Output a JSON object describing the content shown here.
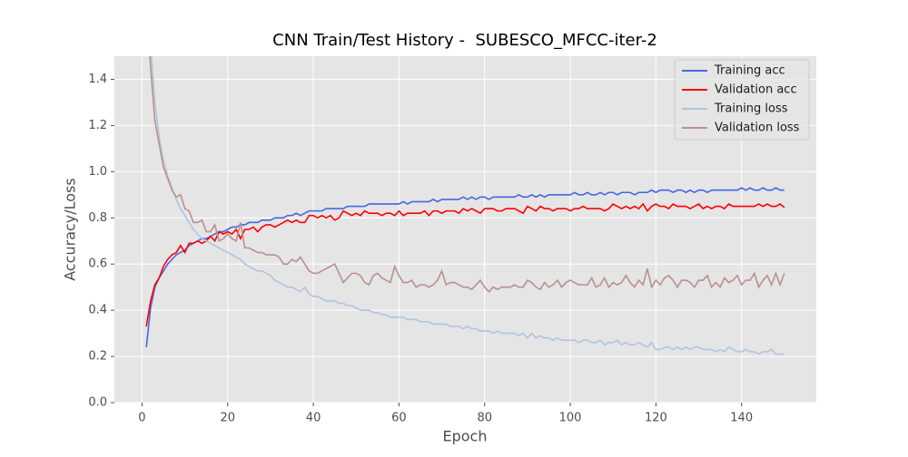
{
  "chart_data": {
    "type": "line",
    "title": "CNN Train/Test History -  SUBESCO_MFCC-iter-2",
    "x_label": "Epoch",
    "y_label": "Accuracy/Loss",
    "x": [
      1,
      2,
      3,
      4,
      5,
      6,
      7,
      8,
      9,
      10,
      11,
      12,
      13,
      14,
      15,
      16,
      17,
      18,
      19,
      20,
      21,
      22,
      23,
      24,
      25,
      26,
      27,
      28,
      29,
      30,
      31,
      32,
      33,
      34,
      35,
      36,
      37,
      38,
      39,
      40,
      41,
      42,
      43,
      44,
      45,
      46,
      47,
      48,
      49,
      50,
      51,
      52,
      53,
      54,
      55,
      56,
      57,
      58,
      59,
      60,
      61,
      62,
      63,
      64,
      65,
      66,
      67,
      68,
      69,
      70,
      71,
      72,
      73,
      74,
      75,
      76,
      77,
      78,
      79,
      80,
      81,
      82,
      83,
      84,
      85,
      86,
      87,
      88,
      89,
      90,
      91,
      92,
      93,
      94,
      95,
      96,
      97,
      98,
      99,
      100,
      101,
      102,
      103,
      104,
      105,
      106,
      107,
      108,
      109,
      110,
      111,
      112,
      113,
      114,
      115,
      116,
      117,
      118,
      119,
      120,
      121,
      122,
      123,
      124,
      125,
      126,
      127,
      128,
      129,
      130,
      131,
      132,
      133,
      134,
      135,
      136,
      137,
      138,
      139,
      140,
      141,
      142,
      143,
      144,
      145,
      146,
      147,
      148,
      149,
      150
    ],
    "series": [
      {
        "name": "Training acc",
        "color": "#4169e1",
        "values": [
          0.24,
          0.41,
          0.5,
          0.54,
          0.57,
          0.6,
          0.62,
          0.64,
          0.65,
          0.66,
          0.68,
          0.69,
          0.7,
          0.71,
          0.71,
          0.72,
          0.73,
          0.74,
          0.74,
          0.75,
          0.76,
          0.76,
          0.77,
          0.77,
          0.78,
          0.78,
          0.78,
          0.79,
          0.79,
          0.79,
          0.8,
          0.8,
          0.8,
          0.81,
          0.81,
          0.82,
          0.81,
          0.82,
          0.83,
          0.83,
          0.83,
          0.83,
          0.84,
          0.84,
          0.84,
          0.84,
          0.84,
          0.85,
          0.85,
          0.85,
          0.85,
          0.85,
          0.86,
          0.86,
          0.86,
          0.86,
          0.86,
          0.86,
          0.86,
          0.86,
          0.87,
          0.86,
          0.87,
          0.87,
          0.87,
          0.87,
          0.87,
          0.88,
          0.87,
          0.88,
          0.88,
          0.88,
          0.88,
          0.88,
          0.89,
          0.88,
          0.89,
          0.88,
          0.89,
          0.89,
          0.88,
          0.89,
          0.89,
          0.89,
          0.89,
          0.89,
          0.89,
          0.9,
          0.89,
          0.89,
          0.9,
          0.89,
          0.9,
          0.89,
          0.9,
          0.9,
          0.9,
          0.9,
          0.9,
          0.9,
          0.91,
          0.9,
          0.9,
          0.91,
          0.9,
          0.9,
          0.91,
          0.9,
          0.91,
          0.91,
          0.9,
          0.91,
          0.91,
          0.91,
          0.9,
          0.91,
          0.91,
          0.91,
          0.92,
          0.91,
          0.92,
          0.92,
          0.92,
          0.91,
          0.92,
          0.92,
          0.91,
          0.92,
          0.91,
          0.92,
          0.92,
          0.91,
          0.92,
          0.92,
          0.92,
          0.92,
          0.92,
          0.92,
          0.92,
          0.93,
          0.92,
          0.93,
          0.92,
          0.92,
          0.93,
          0.92,
          0.92,
          0.93,
          0.92,
          0.92
        ]
      },
      {
        "name": "Validation acc",
        "color": "#ff0000",
        "values": [
          0.33,
          0.44,
          0.51,
          0.54,
          0.59,
          0.62,
          0.64,
          0.65,
          0.68,
          0.65,
          0.69,
          0.69,
          0.7,
          0.69,
          0.7,
          0.72,
          0.7,
          0.74,
          0.73,
          0.74,
          0.73,
          0.75,
          0.71,
          0.75,
          0.75,
          0.76,
          0.74,
          0.76,
          0.77,
          0.77,
          0.76,
          0.77,
          0.78,
          0.79,
          0.78,
          0.79,
          0.78,
          0.78,
          0.81,
          0.81,
          0.8,
          0.81,
          0.8,
          0.81,
          0.79,
          0.8,
          0.83,
          0.82,
          0.81,
          0.82,
          0.81,
          0.83,
          0.82,
          0.82,
          0.82,
          0.81,
          0.82,
          0.82,
          0.81,
          0.83,
          0.81,
          0.82,
          0.82,
          0.82,
          0.82,
          0.83,
          0.81,
          0.83,
          0.83,
          0.82,
          0.83,
          0.83,
          0.83,
          0.82,
          0.84,
          0.83,
          0.84,
          0.83,
          0.82,
          0.84,
          0.84,
          0.84,
          0.83,
          0.83,
          0.84,
          0.84,
          0.84,
          0.83,
          0.82,
          0.85,
          0.84,
          0.83,
          0.85,
          0.84,
          0.84,
          0.83,
          0.84,
          0.84,
          0.84,
          0.83,
          0.84,
          0.84,
          0.85,
          0.84,
          0.84,
          0.84,
          0.84,
          0.83,
          0.84,
          0.86,
          0.85,
          0.84,
          0.85,
          0.84,
          0.85,
          0.84,
          0.86,
          0.83,
          0.85,
          0.86,
          0.85,
          0.85,
          0.84,
          0.86,
          0.85,
          0.85,
          0.85,
          0.84,
          0.85,
          0.86,
          0.84,
          0.85,
          0.84,
          0.85,
          0.85,
          0.84,
          0.86,
          0.85,
          0.85,
          0.85,
          0.85,
          0.85,
          0.85,
          0.86,
          0.85,
          0.86,
          0.85,
          0.85,
          0.86,
          0.845
        ]
      },
      {
        "name": "Training loss",
        "color": "#b0c4de",
        "values": [
          1.9,
          1.55,
          1.3,
          1.15,
          1.05,
          0.98,
          0.93,
          0.88,
          0.84,
          0.81,
          0.78,
          0.75,
          0.73,
          0.71,
          0.7,
          0.69,
          0.68,
          0.67,
          0.66,
          0.65,
          0.64,
          0.63,
          0.62,
          0.6,
          0.59,
          0.58,
          0.57,
          0.57,
          0.56,
          0.55,
          0.53,
          0.52,
          0.51,
          0.5,
          0.5,
          0.49,
          0.48,
          0.5,
          0.47,
          0.46,
          0.46,
          0.45,
          0.44,
          0.44,
          0.44,
          0.43,
          0.43,
          0.42,
          0.42,
          0.41,
          0.4,
          0.4,
          0.4,
          0.39,
          0.39,
          0.38,
          0.38,
          0.37,
          0.37,
          0.37,
          0.37,
          0.36,
          0.36,
          0.36,
          0.35,
          0.35,
          0.35,
          0.34,
          0.34,
          0.34,
          0.34,
          0.33,
          0.33,
          0.33,
          0.32,
          0.33,
          0.32,
          0.32,
          0.31,
          0.31,
          0.31,
          0.3,
          0.31,
          0.3,
          0.3,
          0.3,
          0.3,
          0.29,
          0.3,
          0.28,
          0.3,
          0.28,
          0.29,
          0.28,
          0.28,
          0.27,
          0.28,
          0.27,
          0.27,
          0.27,
          0.27,
          0.26,
          0.27,
          0.27,
          0.26,
          0.26,
          0.27,
          0.25,
          0.26,
          0.26,
          0.27,
          0.25,
          0.26,
          0.25,
          0.25,
          0.26,
          0.25,
          0.24,
          0.26,
          0.23,
          0.23,
          0.24,
          0.24,
          0.23,
          0.24,
          0.23,
          0.24,
          0.23,
          0.24,
          0.24,
          0.23,
          0.23,
          0.23,
          0.22,
          0.23,
          0.22,
          0.24,
          0.23,
          0.22,
          0.22,
          0.23,
          0.22,
          0.22,
          0.21,
          0.22,
          0.22,
          0.23,
          0.21,
          0.21,
          0.21
        ]
      },
      {
        "name": "Validation loss",
        "color": "#bc8f8f",
        "values": [
          1.8,
          1.45,
          1.22,
          1.12,
          1.02,
          0.97,
          0.92,
          0.89,
          0.9,
          0.84,
          0.83,
          0.78,
          0.78,
          0.79,
          0.74,
          0.74,
          0.77,
          0.7,
          0.71,
          0.73,
          0.71,
          0.7,
          0.78,
          0.67,
          0.67,
          0.66,
          0.65,
          0.65,
          0.64,
          0.64,
          0.64,
          0.63,
          0.6,
          0.6,
          0.62,
          0.61,
          0.63,
          0.6,
          0.57,
          0.56,
          0.56,
          0.57,
          0.58,
          0.59,
          0.6,
          0.56,
          0.52,
          0.54,
          0.56,
          0.56,
          0.55,
          0.52,
          0.51,
          0.55,
          0.56,
          0.54,
          0.53,
          0.52,
          0.59,
          0.55,
          0.52,
          0.52,
          0.53,
          0.5,
          0.51,
          0.51,
          0.5,
          0.51,
          0.53,
          0.57,
          0.51,
          0.52,
          0.52,
          0.51,
          0.5,
          0.5,
          0.49,
          0.51,
          0.53,
          0.5,
          0.48,
          0.5,
          0.49,
          0.5,
          0.5,
          0.5,
          0.51,
          0.5,
          0.5,
          0.53,
          0.52,
          0.5,
          0.49,
          0.52,
          0.5,
          0.51,
          0.53,
          0.5,
          0.52,
          0.53,
          0.52,
          0.51,
          0.51,
          0.51,
          0.54,
          0.5,
          0.51,
          0.54,
          0.5,
          0.52,
          0.51,
          0.52,
          0.55,
          0.52,
          0.5,
          0.53,
          0.51,
          0.58,
          0.5,
          0.53,
          0.51,
          0.54,
          0.55,
          0.53,
          0.5,
          0.53,
          0.53,
          0.52,
          0.5,
          0.53,
          0.53,
          0.55,
          0.5,
          0.52,
          0.5,
          0.54,
          0.52,
          0.53,
          0.55,
          0.51,
          0.53,
          0.53,
          0.56,
          0.5,
          0.53,
          0.55,
          0.51,
          0.56,
          0.51,
          0.56
        ]
      }
    ],
    "xlim": [
      -6.45,
      157.45
    ],
    "xticks": [
      0,
      20,
      40,
      60,
      80,
      100,
      120,
      140
    ],
    "ylim": [
      0,
      1.5
    ],
    "yticks": [
      {
        "value": 0,
        "label": "0.0"
      },
      {
        "value": 0.2,
        "label": "0.2"
      },
      {
        "value": 0.4,
        "label": "0.4"
      },
      {
        "value": 0.6,
        "label": "0.6"
      },
      {
        "value": 0.8,
        "label": "0.8"
      },
      {
        "value": 1,
        "label": "1.0"
      },
      {
        "value": 1.2,
        "label": "1.2"
      },
      {
        "value": 1.4,
        "label": "1.4"
      }
    ],
    "grid": true,
    "legend": "upper right"
  }
}
